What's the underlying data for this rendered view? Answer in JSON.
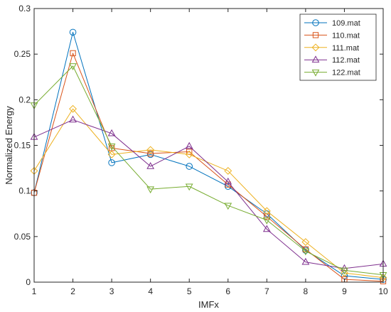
{
  "chart_data": {
    "type": "line",
    "title": "",
    "xlabel": "IMFx",
    "ylabel": "Normalized Energy",
    "xlim": [
      1,
      10
    ],
    "ylim": [
      0,
      0.3
    ],
    "x": [
      1,
      2,
      3,
      4,
      5,
      6,
      7,
      8,
      9,
      10
    ],
    "xticks": [
      "1",
      "2",
      "3",
      "4",
      "5",
      "6",
      "7",
      "8",
      "9",
      "10"
    ],
    "yticks": [
      "0",
      "0.05",
      "0.1",
      "0.15",
      "0.2",
      "0.25",
      "0.3"
    ],
    "ytick_values": [
      0,
      0.05,
      0.1,
      0.15,
      0.2,
      0.25,
      0.3
    ],
    "grid": false,
    "legend_position": "top-right",
    "series": [
      {
        "name": "109.mat",
        "color": "#0072BD",
        "marker": "circle",
        "values": [
          0.098,
          0.274,
          0.131,
          0.14,
          0.127,
          0.105,
          0.075,
          0.035,
          0.007,
          0.003
        ]
      },
      {
        "name": "110.mat",
        "color": "#D95319",
        "marker": "square",
        "values": [
          0.098,
          0.251,
          0.147,
          0.141,
          0.143,
          0.107,
          0.072,
          0.036,
          0.003,
          0.001
        ]
      },
      {
        "name": "111.mat",
        "color": "#EDB120",
        "marker": "diamond",
        "values": [
          0.122,
          0.19,
          0.14,
          0.145,
          0.14,
          0.122,
          0.078,
          0.044,
          0.01,
          0.005
        ]
      },
      {
        "name": "112.mat",
        "color": "#7E2F8E",
        "marker": "triangle-up",
        "values": [
          0.159,
          0.178,
          0.163,
          0.127,
          0.149,
          0.11,
          0.058,
          0.022,
          0.015,
          0.02
        ]
      },
      {
        "name": "122.mat",
        "color": "#77AC30",
        "marker": "triangle-down",
        "values": [
          0.194,
          0.237,
          0.149,
          0.102,
          0.105,
          0.084,
          0.068,
          0.034,
          0.013,
          0.008
        ]
      }
    ]
  }
}
